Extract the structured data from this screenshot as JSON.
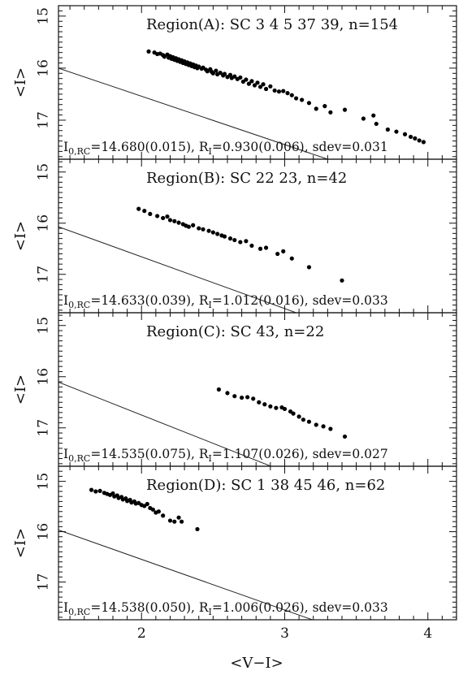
{
  "figure": {
    "xlabel": "<V−I>",
    "ylabel": "<I>",
    "xlim": [
      1.42,
      4.2
    ],
    "x_ticks": [
      2,
      3,
      4
    ],
    "y_ticks": [
      15,
      16,
      17
    ],
    "colors": {
      "axis": "#111111",
      "points": "#000000",
      "fit_line": "#222222"
    }
  },
  "chart_data": [
    {
      "type": "scatter",
      "title": "Region(A): SC  3  4  5  37  39,  n=154",
      "fit": {
        "label": "I",
        "sub": "0,RC",
        "text_a": "=14.680(0.015), R",
        "rsub": "I",
        "text_b": "=0.930(0.006), sdev=0.031",
        "intercept": 14.68,
        "slope": 0.93
      },
      "ylim": [
        14.8,
        17.75
      ],
      "points": [
        [
          2.05,
          15.68
        ],
        [
          2.09,
          15.7
        ],
        [
          2.11,
          15.73
        ],
        [
          2.13,
          15.72
        ],
        [
          2.15,
          15.75
        ],
        [
          2.16,
          15.78
        ],
        [
          2.18,
          15.74
        ],
        [
          2.19,
          15.8
        ],
        [
          2.2,
          15.77
        ],
        [
          2.21,
          15.82
        ],
        [
          2.22,
          15.79
        ],
        [
          2.23,
          15.84
        ],
        [
          2.24,
          15.81
        ],
        [
          2.25,
          15.86
        ],
        [
          2.26,
          15.83
        ],
        [
          2.27,
          15.88
        ],
        [
          2.28,
          15.85
        ],
        [
          2.29,
          15.9
        ],
        [
          2.3,
          15.87
        ],
        [
          2.31,
          15.92
        ],
        [
          2.32,
          15.89
        ],
        [
          2.33,
          15.94
        ],
        [
          2.34,
          15.91
        ],
        [
          2.35,
          15.96
        ],
        [
          2.36,
          15.93
        ],
        [
          2.37,
          15.98
        ],
        [
          2.38,
          15.95
        ],
        [
          2.39,
          16.0
        ],
        [
          2.4,
          15.97
        ],
        [
          2.42,
          16.01
        ],
        [
          2.43,
          15.99
        ],
        [
          2.45,
          16.03
        ],
        [
          2.46,
          16.06
        ],
        [
          2.48,
          16.02
        ],
        [
          2.49,
          16.07
        ],
        [
          2.5,
          16.1
        ],
        [
          2.52,
          16.05
        ],
        [
          2.53,
          16.12
        ],
        [
          2.55,
          16.09
        ],
        [
          2.57,
          16.14
        ],
        [
          2.58,
          16.11
        ],
        [
          2.6,
          16.17
        ],
        [
          2.62,
          16.13
        ],
        [
          2.63,
          16.19
        ],
        [
          2.65,
          16.16
        ],
        [
          2.67,
          16.21
        ],
        [
          2.69,
          16.18
        ],
        [
          2.71,
          16.26
        ],
        [
          2.73,
          16.22
        ],
        [
          2.75,
          16.3
        ],
        [
          2.77,
          16.25
        ],
        [
          2.79,
          16.33
        ],
        [
          2.81,
          16.28
        ],
        [
          2.83,
          16.36
        ],
        [
          2.85,
          16.31
        ],
        [
          2.87,
          16.4
        ],
        [
          2.9,
          16.35
        ],
        [
          2.93,
          16.43
        ],
        [
          2.96,
          16.45
        ],
        [
          2.99,
          16.44
        ],
        [
          3.02,
          16.48
        ],
        [
          3.05,
          16.52
        ],
        [
          3.08,
          16.58
        ],
        [
          3.12,
          16.61
        ],
        [
          3.17,
          16.67
        ],
        [
          3.22,
          16.78
        ],
        [
          3.28,
          16.73
        ],
        [
          3.32,
          16.85
        ],
        [
          3.42,
          16.8
        ],
        [
          3.55,
          16.97
        ],
        [
          3.62,
          16.91
        ],
        [
          3.64,
          17.07
        ],
        [
          3.72,
          17.18
        ],
        [
          3.78,
          17.22
        ],
        [
          3.84,
          17.27
        ],
        [
          3.88,
          17.32
        ],
        [
          3.91,
          17.35
        ],
        [
          3.94,
          17.39
        ],
        [
          3.97,
          17.42
        ]
      ]
    },
    {
      "type": "scatter",
      "title": "Region(B): SC  22  23,   n=42",
      "fit": {
        "label": "I",
        "sub": "0,RC",
        "text_a": "=14.633(0.039), R",
        "rsub": "I",
        "text_b": "=1.012(0.016), sdev=0.033",
        "intercept": 14.633,
        "slope": 1.012
      },
      "ylim": [
        14.75,
        17.75
      ],
      "points": [
        [
          1.98,
          15.72
        ],
        [
          2.02,
          15.76
        ],
        [
          2.06,
          15.82
        ],
        [
          2.11,
          15.86
        ],
        [
          2.15,
          15.9
        ],
        [
          2.18,
          15.87
        ],
        [
          2.2,
          15.94
        ],
        [
          2.23,
          15.96
        ],
        [
          2.26,
          15.99
        ],
        [
          2.29,
          16.02
        ],
        [
          2.31,
          16.05
        ],
        [
          2.33,
          16.07
        ],
        [
          2.36,
          16.04
        ],
        [
          2.4,
          16.1
        ],
        [
          2.43,
          16.12
        ],
        [
          2.47,
          16.15
        ],
        [
          2.5,
          16.18
        ],
        [
          2.53,
          16.21
        ],
        [
          2.56,
          16.24
        ],
        [
          2.58,
          16.26
        ],
        [
          2.62,
          16.3
        ],
        [
          2.65,
          16.33
        ],
        [
          2.69,
          16.37
        ],
        [
          2.73,
          16.35
        ],
        [
          2.77,
          16.44
        ],
        [
          2.83,
          16.5
        ],
        [
          2.87,
          16.48
        ],
        [
          2.95,
          16.6
        ],
        [
          2.99,
          16.55
        ],
        [
          3.05,
          16.69
        ],
        [
          3.17,
          16.86
        ],
        [
          3.4,
          17.12
        ]
      ]
    },
    {
      "type": "scatter",
      "title": "Region(C): SC  43,   n=22",
      "fit": {
        "label": "I",
        "sub": "0,RC",
        "text_a": "=14.535(0.075), R",
        "rsub": "I",
        "text_b": "=1.107(0.026), sdev=0.027",
        "intercept": 14.535,
        "slope": 1.107
      },
      "ylim": [
        14.75,
        17.75
      ],
      "points": [
        [
          2.54,
          16.25
        ],
        [
          2.6,
          16.32
        ],
        [
          2.65,
          16.38
        ],
        [
          2.7,
          16.41
        ],
        [
          2.74,
          16.4
        ],
        [
          2.78,
          16.43
        ],
        [
          2.82,
          16.5
        ],
        [
          2.86,
          16.54
        ],
        [
          2.9,
          16.58
        ],
        [
          2.94,
          16.61
        ],
        [
          2.98,
          16.6
        ],
        [
          3.0,
          16.63
        ],
        [
          3.04,
          16.68
        ],
        [
          3.06,
          16.72
        ],
        [
          3.1,
          16.78
        ],
        [
          3.13,
          16.84
        ],
        [
          3.17,
          16.88
        ],
        [
          3.22,
          16.94
        ],
        [
          3.27,
          16.97
        ],
        [
          3.32,
          17.02
        ],
        [
          3.42,
          17.17
        ]
      ]
    },
    {
      "type": "scatter",
      "title": "Region(D): SC  1  38  45  46,  n=62",
      "fit": {
        "label": "I",
        "sub": "0,RC",
        "text_a": "=14.538(0.050), R",
        "rsub": "I",
        "text_b": "=1.006(0.026), sdev=0.033",
        "intercept": 14.538,
        "slope": 1.006
      },
      "ylim": [
        14.7,
        17.75
      ],
      "points": [
        [
          1.65,
          15.17
        ],
        [
          1.68,
          15.2
        ],
        [
          1.71,
          15.19
        ],
        [
          1.74,
          15.23
        ],
        [
          1.76,
          15.25
        ],
        [
          1.78,
          15.27
        ],
        [
          1.8,
          15.24
        ],
        [
          1.81,
          15.3
        ],
        [
          1.83,
          15.28
        ],
        [
          1.84,
          15.33
        ],
        [
          1.86,
          15.31
        ],
        [
          1.87,
          15.36
        ],
        [
          1.89,
          15.34
        ],
        [
          1.9,
          15.39
        ],
        [
          1.92,
          15.37
        ],
        [
          1.93,
          15.42
        ],
        [
          1.95,
          15.4
        ],
        [
          1.96,
          15.44
        ],
        [
          1.98,
          15.43
        ],
        [
          2.0,
          15.47
        ],
        [
          2.02,
          15.49
        ],
        [
          2.04,
          15.45
        ],
        [
          2.06,
          15.53
        ],
        [
          2.08,
          15.56
        ],
        [
          2.1,
          15.62
        ],
        [
          2.12,
          15.6
        ],
        [
          2.15,
          15.68
        ],
        [
          2.2,
          15.78
        ],
        [
          2.23,
          15.8
        ],
        [
          2.26,
          15.72
        ],
        [
          2.28,
          15.8
        ],
        [
          2.39,
          15.95
        ]
      ]
    }
  ]
}
